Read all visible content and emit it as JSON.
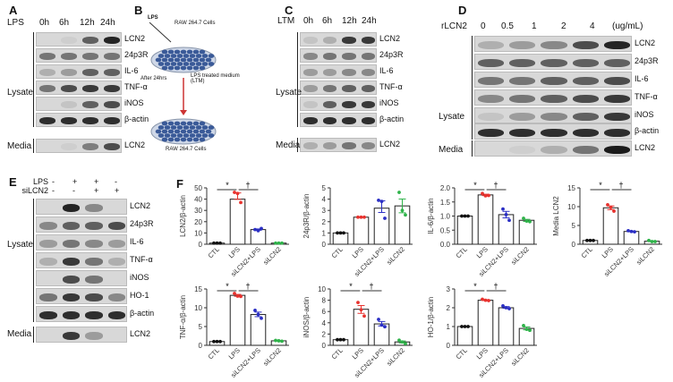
{
  "panels": {
    "A": {
      "label": "A",
      "treatment": "LPS",
      "lanes": [
        "0h",
        "6h",
        "12h",
        "24h"
      ],
      "lysate_label": "Lysate",
      "media_label": "Media",
      "lysate_rows": [
        {
          "name": "LCN2",
          "bands": [
            0,
            0.05,
            0.6,
            0.9
          ]
        },
        {
          "name": "24p3R",
          "bands": [
            0.5,
            0.5,
            0.5,
            0.5
          ]
        },
        {
          "name": "IL-6",
          "bands": [
            0.2,
            0.3,
            0.6,
            0.6
          ]
        },
        {
          "name": "TNF-α",
          "bands": [
            0.5,
            0.7,
            0.8,
            0.8
          ]
        },
        {
          "name": "iNOS",
          "bands": [
            0,
            0.1,
            0.6,
            0.7
          ]
        },
        {
          "name": "β-actin",
          "bands": [
            0.85,
            0.85,
            0.85,
            0.85
          ]
        }
      ],
      "media_rows": [
        {
          "name": "LCN2",
          "bands": [
            0,
            0.05,
            0.45,
            0.7
          ]
        }
      ]
    },
    "B": {
      "label": "B",
      "lps": "LPS",
      "cells_top": "RAW 264.7 Cells",
      "after": "After 24hrs",
      "ltm": "LPS treated medium (LTM)",
      "cells_bottom": "RAW 264.7 Cells"
    },
    "C": {
      "label": "C",
      "treatment": "LTM",
      "lanes": [
        "0h",
        "6h",
        "12h",
        "24h"
      ],
      "lysate_label": "Lysate",
      "media_label": "Media",
      "lysate_rows": [
        {
          "name": "LCN2",
          "bands": [
            0.1,
            0.2,
            0.8,
            0.8
          ]
        },
        {
          "name": "24p3R",
          "bands": [
            0.4,
            0.5,
            0.5,
            0.5
          ]
        },
        {
          "name": "IL-6",
          "bands": [
            0.3,
            0.3,
            0.4,
            0.4
          ]
        },
        {
          "name": "TNF-α",
          "bands": [
            0.3,
            0.5,
            0.6,
            0.6
          ]
        },
        {
          "name": "iNOS",
          "bands": [
            0.1,
            0.6,
            0.8,
            0.8
          ]
        },
        {
          "name": "β-actin",
          "bands": [
            0.85,
            0.85,
            0.85,
            0.85
          ]
        }
      ],
      "media_rows": [
        {
          "name": "LCN2",
          "bands": [
            0.2,
            0.3,
            0.5,
            0.4
          ]
        }
      ]
    },
    "D": {
      "label": "D",
      "treatment": "rLCN2",
      "lanes": [
        "0",
        "0.5",
        "1",
        "2",
        "4"
      ],
      "unit": "(ug/mL)",
      "lysate_label": "Lysate",
      "media_label": "Media",
      "lysate_rows": [
        {
          "name": "LCN2",
          "bands": [
            0.2,
            0.3,
            0.4,
            0.7,
            0.9
          ]
        },
        {
          "name": "24p3R",
          "bands": [
            0.6,
            0.6,
            0.6,
            0.6,
            0.6
          ]
        },
        {
          "name": "IL-6",
          "bands": [
            0.5,
            0.5,
            0.6,
            0.6,
            0.7
          ]
        },
        {
          "name": "TNF-α",
          "bands": [
            0.4,
            0.5,
            0.6,
            0.7,
            0.8
          ]
        },
        {
          "name": "iNOS",
          "bands": [
            0.1,
            0.3,
            0.4,
            0.6,
            0.8
          ]
        },
        {
          "name": "β-actin",
          "bands": [
            0.85,
            0.85,
            0.85,
            0.85,
            0.85
          ]
        }
      ],
      "media_rows": [
        {
          "name": "LCN2",
          "bands": [
            0,
            0.05,
            0.2,
            0.5,
            0.95
          ]
        }
      ]
    },
    "E": {
      "label": "E",
      "treatments": [
        {
          "name": "LPS",
          "signs": [
            "-",
            "+",
            "+",
            "-"
          ]
        },
        {
          "name": "siLCN2",
          "signs": [
            "-",
            "-",
            "+",
            "+"
          ]
        }
      ],
      "lysate_label": "Lysate",
      "media_label": "Media",
      "lysate_rows": [
        {
          "name": "LCN2",
          "bands": [
            0,
            0.9,
            0.4,
            0
          ]
        },
        {
          "name": "24p3R",
          "bands": [
            0.4,
            0.6,
            0.6,
            0.7
          ]
        },
        {
          "name": "IL-6",
          "bands": [
            0.3,
            0.5,
            0.4,
            0.3
          ]
        },
        {
          "name": "TNF-α",
          "bands": [
            0.2,
            0.8,
            0.5,
            0.2
          ]
        },
        {
          "name": "iNOS",
          "bands": [
            0,
            0.7,
            0.5,
            0
          ]
        },
        {
          "name": "HO-1",
          "bands": [
            0.5,
            0.8,
            0.7,
            0.4
          ]
        },
        {
          "name": "β-actin",
          "bands": [
            0.85,
            0.85,
            0.85,
            0.85
          ]
        }
      ],
      "media_rows": [
        {
          "name": "LCN2",
          "bands": [
            0,
            0.8,
            0.3,
            0
          ]
        }
      ]
    },
    "F": {
      "label": "F"
    }
  },
  "chart_data": [
    {
      "type": "bar",
      "ylabel": "LCN2/β-actin",
      "categories": [
        "CTL",
        "LPS",
        "siLCN2+LPS",
        "siLCN2"
      ],
      "values": [
        1,
        40,
        13,
        1
      ],
      "points": [
        [
          1,
          1,
          1
        ],
        [
          46,
          45,
          37
        ],
        [
          13,
          12,
          14
        ],
        [
          1,
          1,
          1
        ]
      ],
      "ylim": [
        0,
        50
      ],
      "yticks": [
        0,
        10,
        20,
        30,
        40,
        50
      ],
      "sig": [
        "*",
        "†"
      ]
    },
    {
      "type": "bar",
      "ylabel": "24p3R/β-actin",
      "categories": [
        "CTL",
        "LPS",
        "siLCN2+LPS",
        "siLCN2"
      ],
      "values": [
        1,
        2.4,
        3.2,
        3.4
      ],
      "points": [
        [
          1,
          1,
          1
        ],
        [
          2.4,
          2.4,
          2.4
        ],
        [
          3.9,
          3.8,
          2.3
        ],
        [
          4.6,
          3.0,
          2.6
        ]
      ],
      "ylim": [
        0,
        5
      ],
      "yticks": [
        0,
        1,
        2,
        3,
        4,
        5
      ],
      "sig": []
    },
    {
      "type": "bar",
      "ylabel": "IL-6/β-actin",
      "categories": [
        "CTL",
        "LPS",
        "siLCN2+LPS",
        "siLCN2"
      ],
      "values": [
        1,
        1.75,
        1.05,
        0.85
      ],
      "points": [
        [
          1,
          1,
          1
        ],
        [
          1.8,
          1.72,
          1.73
        ],
        [
          1.25,
          1.05,
          0.85
        ],
        [
          0.92,
          0.82,
          0.8
        ]
      ],
      "ylim": [
        0,
        2
      ],
      "yticks": [
        "0.0",
        "0.5",
        "1.0",
        "1.5",
        "2.0"
      ],
      "sig": [
        "*",
        "†"
      ]
    },
    {
      "type": "bar",
      "ylabel": "Media LCN2",
      "categories": [
        "CTL",
        "LPS",
        "siLCN2+LPS",
        "siLCN2"
      ],
      "values": [
        1,
        9.7,
        3.4,
        0.8
      ],
      "points": [
        [
          1,
          1,
          1
        ],
        [
          10.5,
          9.8,
          8.8
        ],
        [
          3.6,
          3.4,
          3.3
        ],
        [
          1.0,
          0.7,
          0.7
        ]
      ],
      "ylim": [
        0,
        15
      ],
      "yticks": [
        0,
        5,
        10,
        15
      ],
      "sig": [
        "*",
        "†"
      ]
    },
    {
      "type": "bar",
      "ylabel": "TNF-α/β-actin",
      "categories": [
        "CTL",
        "LPS",
        "siLCN2+LPS",
        "siLCN2"
      ],
      "values": [
        1,
        13.3,
        8.2,
        1.2
      ],
      "points": [
        [
          1,
          1,
          1
        ],
        [
          13.8,
          13.1,
          13.0
        ],
        [
          9.3,
          8.2,
          7.2
        ],
        [
          1.3,
          1.2,
          1.1
        ]
      ],
      "ylim": [
        0,
        15
      ],
      "yticks": [
        0,
        5,
        10,
        15
      ],
      "sig": [
        "*",
        "†"
      ]
    },
    {
      "type": "bar",
      "ylabel": "iNOS/β-actin",
      "categories": [
        "CTL",
        "LPS",
        "siLCN2+LPS",
        "siLCN2"
      ],
      "values": [
        1,
        6.4,
        3.8,
        0.6
      ],
      "points": [
        [
          1,
          1,
          1
        ],
        [
          7.6,
          6.3,
          5.2
        ],
        [
          4.6,
          3.6,
          3.3
        ],
        [
          0.9,
          0.6,
          0.3
        ]
      ],
      "ylim": [
        0,
        10
      ],
      "yticks": [
        0,
        2,
        4,
        6,
        8,
        10
      ],
      "sig": [
        "*",
        "†"
      ]
    },
    {
      "type": "bar",
      "ylabel": "HO-1/β-actin",
      "categories": [
        "CTL",
        "LPS",
        "siLCN2+LPS",
        "siLCN2"
      ],
      "values": [
        1,
        2.4,
        2.0,
        0.9
      ],
      "points": [
        [
          1,
          1,
          1
        ],
        [
          2.45,
          2.4,
          2.38
        ],
        [
          2.1,
          2.0,
          1.95
        ],
        [
          1.05,
          0.85,
          0.8
        ]
      ],
      "ylim": [
        0,
        3
      ],
      "yticks": [
        0,
        1,
        2,
        3
      ],
      "sig": [
        "*",
        "†"
      ]
    }
  ],
  "colors": {
    "groups": [
      "#111111",
      "#e8322e",
      "#2b2fc4",
      "#2fb34a"
    ],
    "bar_fill": "#ffffff"
  }
}
